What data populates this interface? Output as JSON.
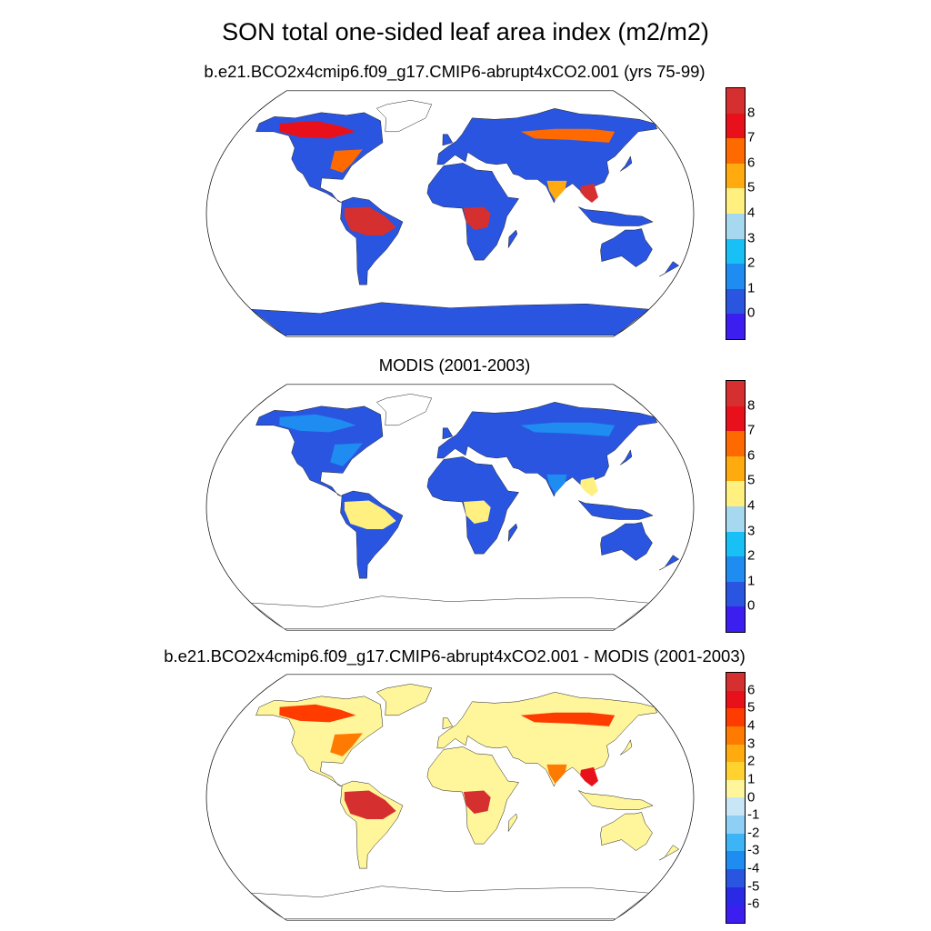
{
  "figure": {
    "title": "SON total one-sided leaf area index (m2/m2)"
  },
  "panels": [
    {
      "id": "model",
      "title": "b.e21.BCO2x4cmip6.f09_g17.CMIP6-abrupt4xCO2.001 (yrs 75-99)",
      "colorbar": {
        "labels": [
          "8",
          "7",
          "6",
          "5",
          "4",
          "3",
          "2",
          "1",
          "0"
        ],
        "colors": [
          "#d62f2f",
          "#e8111b",
          "#ff6a00",
          "#ffab0f",
          "#fff080",
          "#a6d8f0",
          "#19c0f5",
          "#1e8cf0",
          "#2a55e0",
          "#3c1ef0"
        ]
      },
      "legend_land_color": "#2a55e0",
      "regions": {
        "amazon": "#d62f2f",
        "congo": "#d62f2f",
        "se_asia": "#d62f2f",
        "boreal_na": "#e8111b",
        "east_na": "#ff6a00",
        "siberia": "#ff6a00",
        "india": "#ffab0f"
      }
    },
    {
      "id": "obs",
      "title": "MODIS (2001-2003)",
      "colorbar": {
        "labels": [
          "8",
          "7",
          "6",
          "5",
          "4",
          "3",
          "2",
          "1",
          "0"
        ],
        "colors": [
          "#d62f2f",
          "#e8111b",
          "#ff6a00",
          "#ffab0f",
          "#fff080",
          "#a6d8f0",
          "#19c0f5",
          "#1e8cf0",
          "#2a55e0",
          "#3c1ef0"
        ]
      },
      "legend_land_color": "#2a55e0",
      "regions": {
        "amazon": "#fff080",
        "congo": "#fff080",
        "se_asia": "#fff080",
        "boreal_na": "#1e8cf0",
        "east_na": "#1e8cf0",
        "siberia": "#1e8cf0",
        "india": "#1e8cf0"
      }
    },
    {
      "id": "diff",
      "title": "b.e21.BCO2x4cmip6.f09_g17.CMIP6-abrupt4xCO2.001 - MODIS (2001-2003)",
      "colorbar": {
        "labels": [
          "6",
          "5",
          "4",
          "3",
          "2",
          "1",
          "0",
          "-1",
          "-2",
          "-3",
          "-4",
          "-5",
          "-6"
        ],
        "colors": [
          "#d62f2f",
          "#e8111b",
          "#ff3c00",
          "#ff7a00",
          "#ffab0f",
          "#ffd230",
          "#fff59a",
          "#c8e6f5",
          "#8ed0f5",
          "#3cb4f5",
          "#1e8cf0",
          "#2a55e0",
          "#2a2ae6",
          "#3c1ef0"
        ]
      },
      "legend_land_color": "#fff59a",
      "regions": {
        "amazon": "#d62f2f",
        "congo": "#d62f2f",
        "se_asia": "#e8111b",
        "boreal_na": "#ff3c00",
        "east_na": "#ff7a00",
        "siberia": "#ff3c00",
        "india": "#ff7a00"
      }
    }
  ]
}
